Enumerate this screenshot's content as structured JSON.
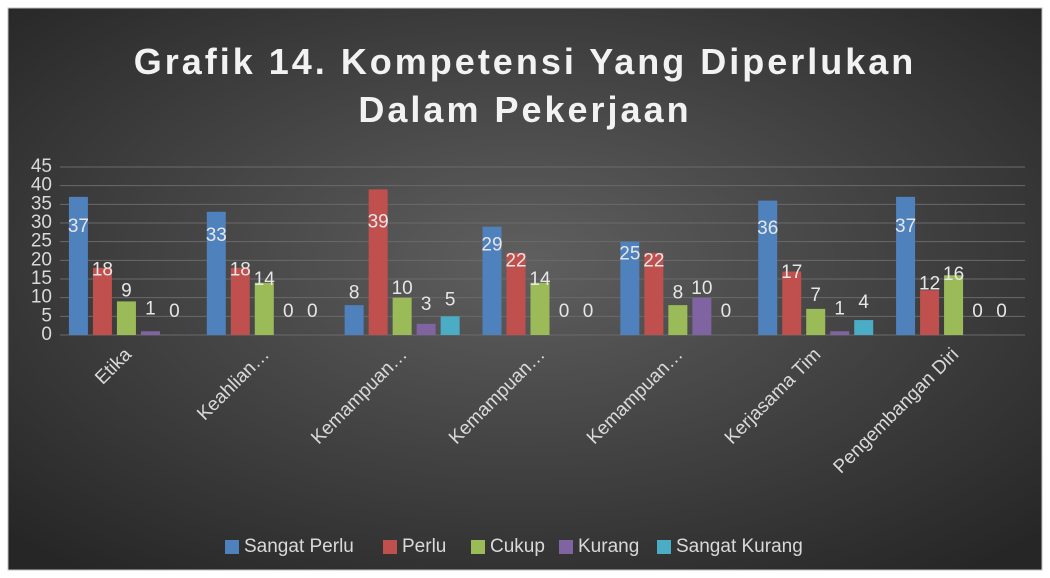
{
  "chart_data": {
    "type": "bar",
    "title": "Grafik 14. Kompetensi Yang Diperlukan Dalam Pekerjaan",
    "categories": [
      "Etika",
      "Keahlian…",
      "Kemampuan…",
      "Kemampuan…",
      "Kemampuan…",
      "Kerjasama Tim",
      "Pengembangan Diri"
    ],
    "series": [
      {
        "name": "Sangat Perlu",
        "color": "#4f81bd",
        "values": [
          37,
          33,
          8,
          29,
          25,
          36,
          37
        ]
      },
      {
        "name": "Perlu",
        "color": "#c0504d",
        "values": [
          18,
          18,
          39,
          22,
          22,
          17,
          12
        ]
      },
      {
        "name": "Cukup",
        "color": "#9bbb59",
        "values": [
          9,
          14,
          10,
          14,
          8,
          7,
          16
        ]
      },
      {
        "name": "Kurang",
        "color": "#8064a2",
        "values": [
          1,
          0,
          3,
          0,
          10,
          1,
          0
        ]
      },
      {
        "name": "Sangat Kurang",
        "color": "#4bacc6",
        "values": [
          0,
          0,
          5,
          0,
          0,
          4,
          0
        ]
      }
    ],
    "ylim": [
      0,
      45
    ],
    "yticks": [
      0,
      5,
      10,
      15,
      20,
      25,
      30,
      35,
      40,
      45
    ],
    "grid": true,
    "legend": "bottom"
  }
}
